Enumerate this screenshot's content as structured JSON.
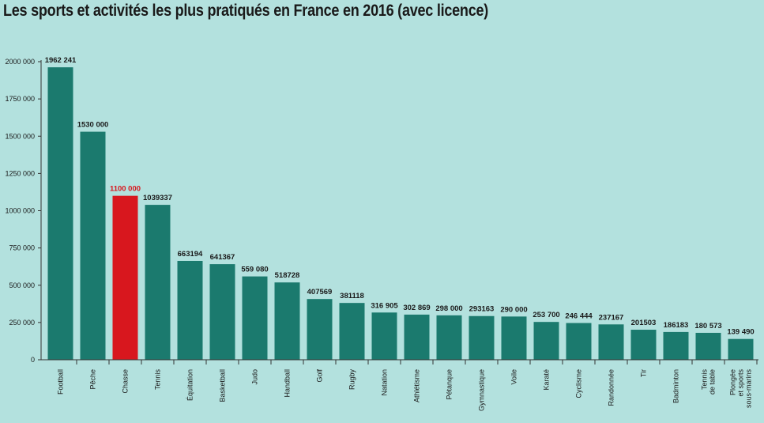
{
  "chart_data": {
    "type": "bar",
    "title": "Les sports et activités les plus pratiqués en France en 2016 (avec licence)",
    "xlabel": "",
    "ylabel": "",
    "ylim": [
      0,
      2000000
    ],
    "grid": false,
    "ytick_values": [
      0,
      250000,
      500000,
      750000,
      1000000,
      1250000,
      1500000,
      1750000,
      2000000
    ],
    "ytick_labels": [
      "0",
      "250 000",
      "500 000",
      "750 000",
      "1000 000",
      "1250 000",
      "1500 000",
      "1750 000",
      "2000 000"
    ],
    "categories": [
      [
        "Football"
      ],
      [
        "Pêche"
      ],
      [
        "Chasse"
      ],
      [
        "Tennis"
      ],
      [
        "Équitation"
      ],
      [
        "Basketball"
      ],
      [
        "Judo"
      ],
      [
        "Handball"
      ],
      [
        "Golf"
      ],
      [
        "Rugby"
      ],
      [
        "Natation"
      ],
      [
        "Athlétisme"
      ],
      [
        "Pétanque"
      ],
      [
        "Gymnastique"
      ],
      [
        "Voile"
      ],
      [
        "Karaté"
      ],
      [
        "Cyclisme"
      ],
      [
        "Randonnée"
      ],
      [
        "Tir"
      ],
      [
        "Badminton"
      ],
      [
        "Tennis",
        "de table"
      ],
      [
        "Plongée",
        "et sports",
        "sous-marins"
      ]
    ],
    "values": [
      1962241,
      1530000,
      1100000,
      1039337,
      663194,
      641367,
      559080,
      518728,
      407569,
      381118,
      316905,
      302869,
      298000,
      293163,
      290000,
      253700,
      246444,
      237167,
      201503,
      186183,
      180573,
      139490
    ],
    "value_labels": [
      "1962 241",
      "1530 000",
      "1100 000",
      "1039337",
      "663194",
      "641367",
      "559 080",
      "518728",
      "407569",
      "381118",
      "316 905",
      "302 869",
      "298 000",
      "293163",
      "290 000",
      "253 700",
      "246 444",
      "237167",
      "201503",
      "186183",
      "180 573",
      "139 490"
    ],
    "highlight_index": 2,
    "colors": {
      "bar": "#1b7a6e",
      "highlight": "#d8171e",
      "highlight_label": "#d8171e",
      "axis": "#333333",
      "background": "#b3e1de"
    }
  }
}
